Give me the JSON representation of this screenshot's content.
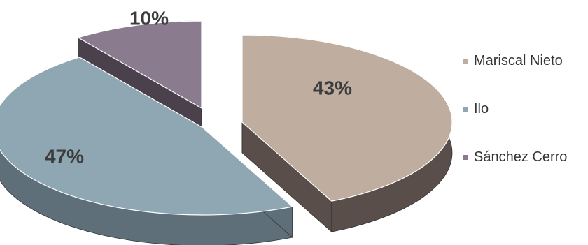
{
  "chart_data": {
    "type": "pie",
    "title": "",
    "categories": [
      "Mariscal Nieto",
      "Ilo",
      "Sánchez Cerro"
    ],
    "values": [
      43,
      47,
      10
    ],
    "labels": [
      "43%",
      "47%",
      "10%"
    ],
    "unit": "%",
    "exploded": true,
    "three_d": true,
    "legend_position": "right",
    "colors": {
      "Mariscal Nieto": "#bfae9f",
      "Ilo": "#8fa6b3",
      "Sánchez Cerro": "#8b7b8f"
    },
    "side_colors": {
      "Mariscal Nieto": "#5a4e4a",
      "Ilo": "#5e6f7a",
      "Sánchez Cerro": "#4b414d"
    }
  }
}
